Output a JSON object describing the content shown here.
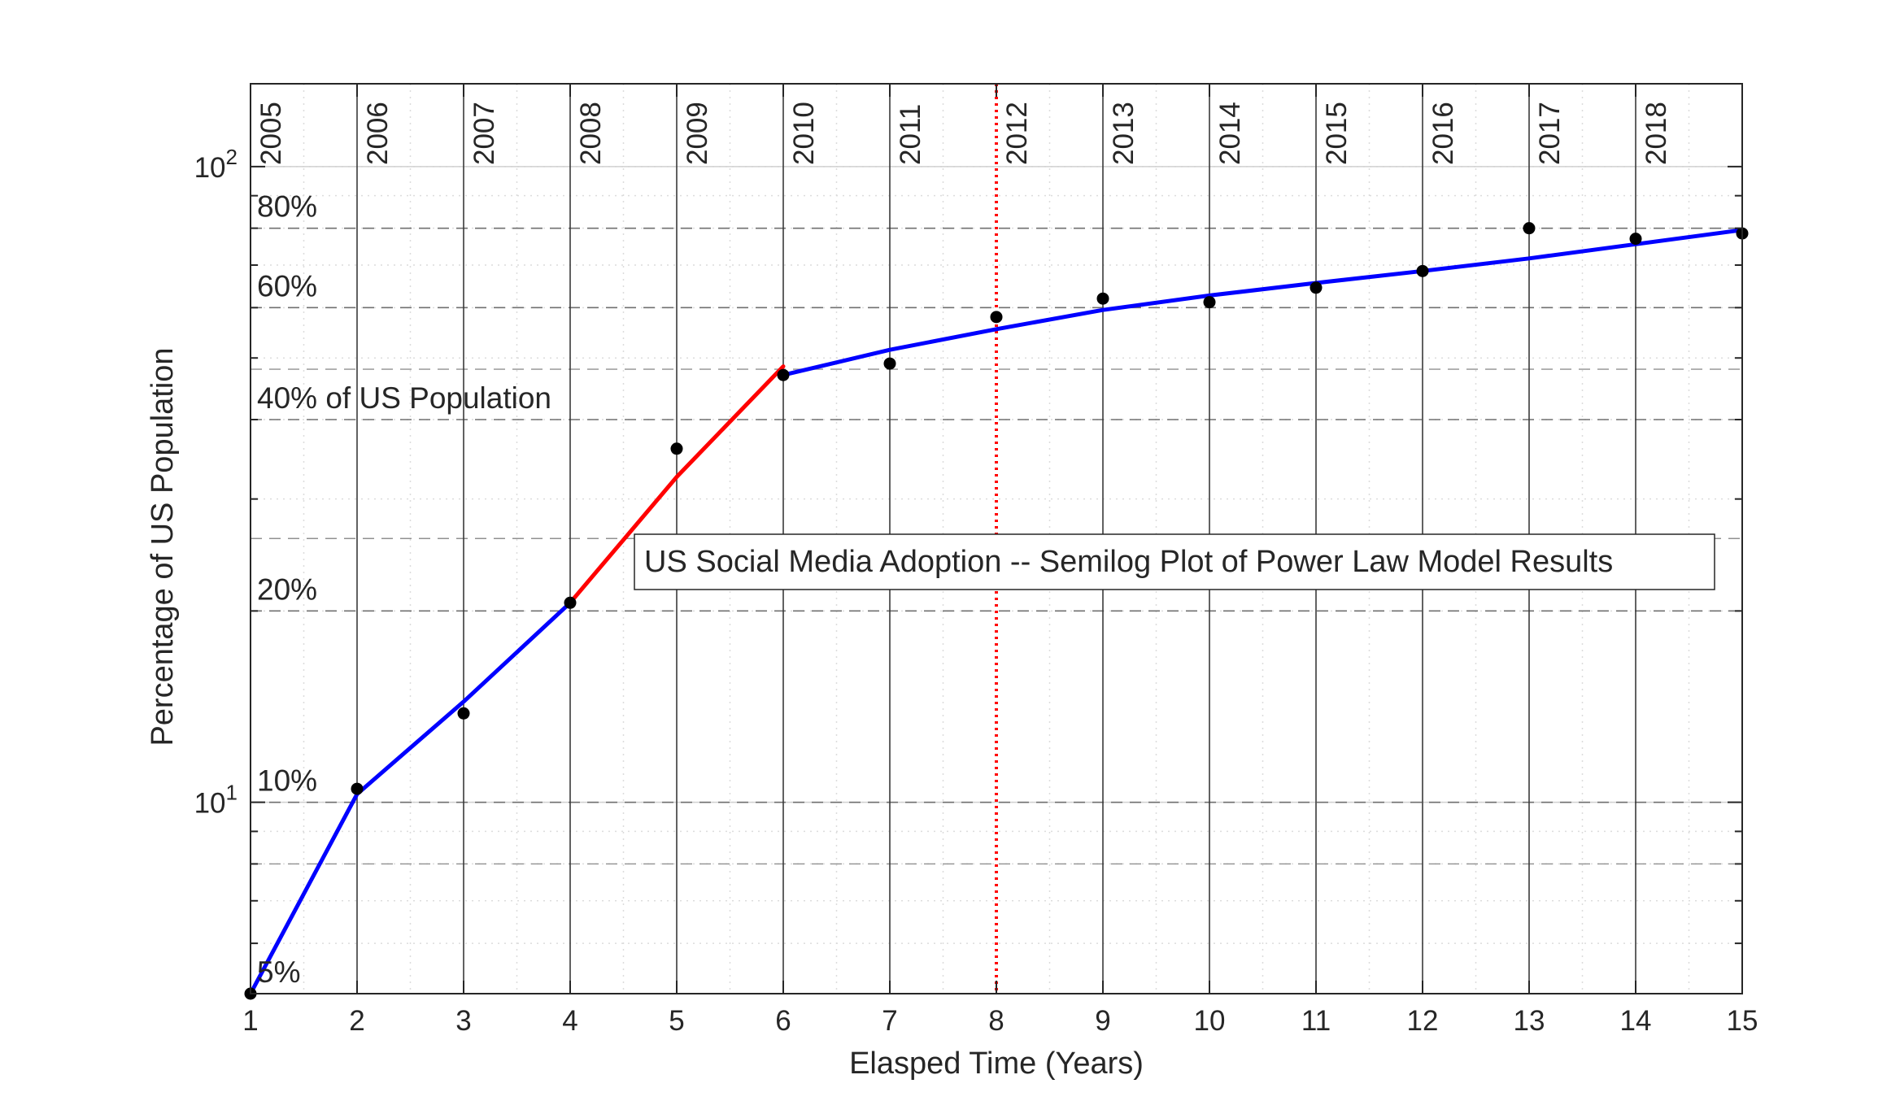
{
  "chart_data": {
    "type": "line",
    "title": "",
    "xlabel": "Elasped Time (Years)",
    "ylabel": "Percentage of US Population",
    "yscale": "log",
    "xlim": [
      1,
      15
    ],
    "ylim": [
      5,
      135
    ],
    "grid": true,
    "x_ticks": [
      1,
      2,
      3,
      4,
      5,
      6,
      7,
      8,
      9,
      10,
      11,
      12,
      13,
      14,
      15
    ],
    "y_ticks": [
      {
        "value": 10,
        "base": "10",
        "exp": "1"
      },
      {
        "value": 100,
        "base": "10",
        "exp": "2"
      }
    ],
    "year_labels": [
      {
        "x": 1,
        "text": "2005"
      },
      {
        "x": 2,
        "text": "2006"
      },
      {
        "x": 3,
        "text": "2007"
      },
      {
        "x": 4,
        "text": "2008"
      },
      {
        "x": 5,
        "text": "2009"
      },
      {
        "x": 6,
        "text": "2010"
      },
      {
        "x": 7,
        "text": "2011"
      },
      {
        "x": 8,
        "text": "2012"
      },
      {
        "x": 9,
        "text": "2013"
      },
      {
        "x": 10,
        "text": "2014"
      },
      {
        "x": 11,
        "text": "2015"
      },
      {
        "x": 12,
        "text": "2016"
      },
      {
        "x": 13,
        "text": "2017"
      },
      {
        "x": 14,
        "text": "2018"
      }
    ],
    "percent_lines": [
      {
        "value": 80,
        "text": "80%"
      },
      {
        "value": 60,
        "text": "60%"
      },
      {
        "value": 40,
        "text": "40% of US Population"
      },
      {
        "value": 20,
        "text": "20%"
      },
      {
        "value": 10,
        "text": "10%"
      },
      {
        "value": 5,
        "text": "5%"
      }
    ],
    "secondary_dashed_lines": [
      48,
      26,
      8
    ],
    "marker_line": {
      "x": 8,
      "color": "#ff0000",
      "style": "dotted"
    },
    "legend_box": {
      "text": "US Social Media Adoption -- Semilog Plot of Power Law Model Results",
      "placement": "center-right"
    },
    "series": [
      {
        "type": "scatter",
        "color": "#000000",
        "points": [
          [
            1,
            5
          ],
          [
            2,
            10.5
          ],
          [
            3,
            13.8
          ],
          [
            4,
            20.6
          ],
          [
            5,
            36
          ],
          [
            6,
            47
          ],
          [
            7,
            49
          ],
          [
            8,
            58
          ],
          [
            9,
            62
          ],
          [
            10,
            61.2
          ],
          [
            11,
            64.5
          ],
          [
            12,
            68.5
          ],
          [
            13,
            80
          ],
          [
            14,
            77
          ],
          [
            15,
            78.5
          ]
        ]
      },
      {
        "type": "line",
        "color": "#0000ff",
        "points": [
          [
            1,
            5
          ],
          [
            2,
            10.3
          ],
          [
            3,
            14.4
          ],
          [
            4,
            20.6
          ]
        ]
      },
      {
        "type": "line",
        "color": "#ff0000",
        "points": [
          [
            4,
            20.6
          ],
          [
            5,
            32.5
          ],
          [
            6,
            48.5
          ]
        ]
      },
      {
        "type": "line",
        "color": "#0000ff",
        "points": [
          [
            6,
            47
          ],
          [
            7,
            51.5
          ],
          [
            8,
            55.5
          ],
          [
            9,
            59.5
          ],
          [
            10,
            62.7
          ],
          [
            11,
            65.6
          ],
          [
            12,
            68.5
          ],
          [
            13,
            71.7
          ],
          [
            14,
            75.5
          ],
          [
            15,
            79.5
          ]
        ]
      }
    ]
  }
}
